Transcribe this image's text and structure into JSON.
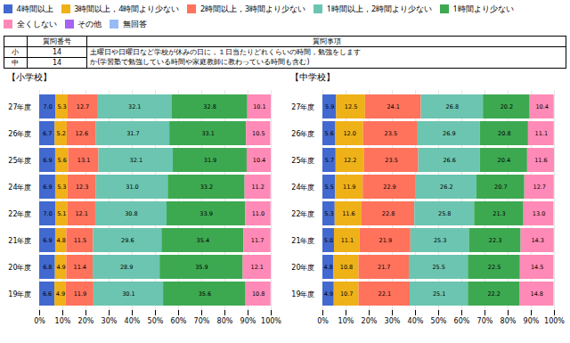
{
  "chart_data": [
    {
      "type": "bar",
      "title": "【小学校】",
      "orientation": "horizontal",
      "stacked": true,
      "categories": [
        "27年度",
        "26年度",
        "25年度",
        "24年度",
        "22年度",
        "21年度",
        "20年度",
        "19年度"
      ],
      "series": [
        {
          "name": "4時間以上",
          "values": [
            7.0,
            6.7,
            6.9,
            6.9,
            7.0,
            6.9,
            6.8,
            6.6
          ],
          "value_labels": [
            "7.0",
            "6.7",
            "6.9",
            "6.9",
            "7.0",
            "6.9",
            "6.8",
            "6.6"
          ]
        },
        {
          "name": "3時間以上，4時間より少ない",
          "values": [
            5.3,
            5.2,
            5.6,
            5.3,
            5.1,
            4.8,
            4.9,
            4.9
          ],
          "value_labels": [
            "5.3",
            "5.2",
            "5.6",
            "5.3",
            "5.1",
            "4.8",
            "4.9",
            "4.9"
          ]
        },
        {
          "name": "2時間以上，3時間より少ない",
          "values": [
            12.7,
            12.6,
            13.1,
            12.3,
            12.1,
            11.5,
            11.4,
            11.9
          ],
          "value_labels": [
            "12.7",
            "12.6",
            "13.1",
            "12.3",
            "12.1",
            "11.5",
            "11.4",
            "11.9"
          ]
        },
        {
          "name": "1時間以上，2時間より少ない",
          "values": [
            32.1,
            31.7,
            32.1,
            31.0,
            30.8,
            29.6,
            28.9,
            30.1
          ],
          "value_labels": [
            "32.1",
            "31.7",
            "32.1",
            "31.0",
            "30.8",
            "29.6",
            "28.9",
            "30.1"
          ]
        },
        {
          "name": "1時間より少ない",
          "values": [
            32.8,
            33.1,
            31.9,
            33.2,
            33.9,
            35.4,
            35.9,
            35.6
          ],
          "value_labels": [
            "32.8",
            "33.1",
            "31.9",
            "33.2",
            "33.9",
            "35.4",
            "35.9",
            "35.6"
          ]
        },
        {
          "name": "全くしない",
          "values": [
            10.1,
            10.5,
            10.4,
            11.2,
            11.0,
            11.7,
            12.1,
            10.8
          ],
          "value_labels": [
            "10.1",
            "10.5",
            "10.4",
            "11.2",
            "11.0",
            "11.7",
            "12.1",
            "10.8"
          ]
        },
        {
          "name": "その他",
          "values": [
            null,
            null,
            null,
            null,
            null,
            null,
            null,
            null
          ]
        },
        {
          "name": "無回答",
          "values": [
            null,
            null,
            null,
            null,
            null,
            null,
            null,
            null
          ]
        }
      ],
      "xlim": [
        0,
        100
      ],
      "xticks": [
        {
          "value": 0,
          "label": "0%"
        },
        {
          "value": 10,
          "label": "10%"
        },
        {
          "value": 20,
          "label": "20%"
        },
        {
          "value": 30,
          "label": "30%"
        },
        {
          "value": 40,
          "label": "40%"
        },
        {
          "value": 50,
          "label": "50%"
        },
        {
          "value": 60,
          "label": "60%"
        },
        {
          "value": 70,
          "label": "70%"
        },
        {
          "value": 80,
          "label": "80%"
        },
        {
          "value": 90,
          "label": "90%"
        },
        {
          "value": 100,
          "label": "100%"
        }
      ],
      "grid": true,
      "data_labels": true,
      "legend": "top",
      "annotations": [
        "質問番号",
        "質問事項",
        "小",
        "14",
        "土曜日や日曜日など学校が休みの日に，１日当たりどれくらいの時間，勉強をします",
        "か(学習塾で勉強している時間や家庭教師に教わっている時間も含む)",
        "中",
        "14"
      ]
    },
    {
      "type": "bar",
      "title": "【中学校】",
      "orientation": "horizontal",
      "stacked": true,
      "categories": [
        "27年度",
        "26年度",
        "25年度",
        "24年度",
        "22年度",
        "21年度",
        "20年度",
        "19年度"
      ],
      "series": [
        {
          "name": "4時間以上",
          "values": [
            5.9,
            5.6,
            5.7,
            5.5,
            5.3,
            5.0,
            4.8,
            4.9
          ],
          "value_labels": [
            "5.9",
            "5.6",
            "5.7",
            "5.5",
            "5.3",
            "5.0",
            "4.8",
            "4.9"
          ]
        },
        {
          "name": "3時間以上，4時間より少ない",
          "values": [
            12.5,
            12.0,
            12.2,
            11.9,
            11.6,
            11.1,
            10.8,
            10.7
          ],
          "value_labels": [
            "12.5",
            "12.0",
            "12.2",
            "11.9",
            "11.6",
            "11.1",
            "10.8",
            "10.7"
          ]
        },
        {
          "name": "2時間以上，3時間より少ない",
          "values": [
            24.1,
            23.5,
            23.5,
            22.9,
            22.8,
            21.9,
            21.7,
            22.1
          ],
          "value_labels": [
            "24.1",
            "23.5",
            "23.5",
            "22.9",
            "22.8",
            "21.9",
            "21.7",
            "22.1"
          ]
        },
        {
          "name": "1時間以上，2時間より少ない",
          "values": [
            26.8,
            26.9,
            26.6,
            26.2,
            25.8,
            25.3,
            25.5,
            25.1
          ],
          "value_labels": [
            "26.8",
            "26.9",
            "26.6",
            "26.2",
            "25.8",
            "25.3",
            "25.5",
            "25.1"
          ]
        },
        {
          "name": "1時間より少ない",
          "values": [
            20.2,
            20.8,
            20.4,
            20.7,
            21.3,
            22.3,
            22.5,
            22.2
          ],
          "value_labels": [
            "20.2",
            "20.8",
            "20.4",
            "20.7",
            "21.3",
            "22.3",
            "22.5",
            "22.2"
          ]
        },
        {
          "name": "全くしない",
          "values": [
            10.4,
            11.1,
            11.6,
            12.7,
            13.0,
            14.3,
            14.5,
            14.8
          ],
          "value_labels": [
            "10.4",
            "11.1",
            "11.6",
            "12.7",
            "13.0",
            "14.3",
            "14.5",
            "14.8"
          ]
        },
        {
          "name": "その他",
          "values": [
            null,
            null,
            null,
            null,
            null,
            null,
            null,
            null
          ]
        },
        {
          "name": "無回答",
          "values": [
            null,
            null,
            null,
            null,
            null,
            null,
            null,
            null
          ]
        }
      ],
      "xlim": [
        0,
        100
      ],
      "xticks": [
        {
          "value": 0,
          "label": "0%"
        },
        {
          "value": 10,
          "label": "10%"
        },
        {
          "value": 20,
          "label": "20%"
        },
        {
          "value": 30,
          "label": "30%"
        },
        {
          "value": 40,
          "label": "40%"
        },
        {
          "value": 50,
          "label": "50%"
        },
        {
          "value": 60,
          "label": "60%"
        },
        {
          "value": 70,
          "label": "70%"
        },
        {
          "value": 80,
          "label": "80%"
        },
        {
          "value": 90,
          "label": "90%"
        },
        {
          "value": 100,
          "label": "100%"
        }
      ],
      "grid": true,
      "data_labels": true,
      "legend": "top"
    }
  ]
}
